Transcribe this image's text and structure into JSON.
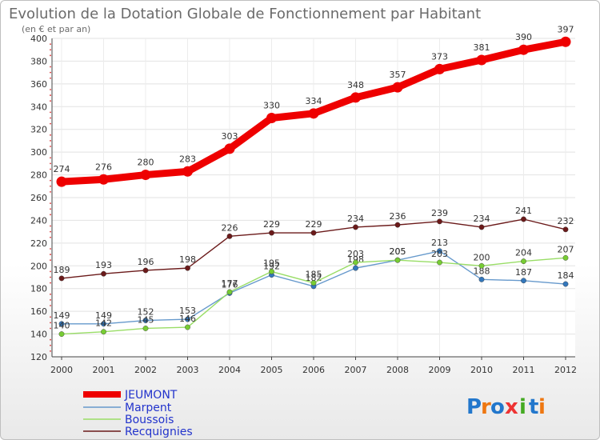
{
  "chart_data": {
    "type": "line",
    "title": "Evolution de la Dotation Globale de Fonctionnement par Habitant",
    "subtitle": "(en € et par an)",
    "categories": [
      "2000",
      "2001",
      "2002",
      "2003",
      "2004",
      "2005",
      "2006",
      "2007",
      "2008",
      "2009",
      "2010",
      "2011",
      "2012"
    ],
    "ylim": [
      120,
      400
    ],
    "yticks": [
      120,
      140,
      160,
      180,
      200,
      220,
      240,
      260,
      280,
      300,
      320,
      340,
      360,
      380,
      400
    ],
    "grid": true,
    "series": [
      {
        "name": "JEUMONT",
        "color": "#ee0000",
        "values": [
          274,
          276,
          280,
          283,
          303,
          330,
          334,
          348,
          357,
          373,
          381,
          390,
          397
        ]
      },
      {
        "name": "Marpent",
        "color": "#6699cc",
        "marker": "#3377bb",
        "values": [
          149,
          149,
          152,
          153,
          176,
          192,
          182,
          198,
          205,
          213,
          188,
          187,
          184
        ]
      },
      {
        "name": "Boussois",
        "color": "#99dd66",
        "marker": "#77cc33",
        "values": [
          140,
          142,
          145,
          146,
          177,
          195,
          185,
          203,
          205,
          203,
          200,
          204,
          207
        ]
      },
      {
        "name": "Recquignies",
        "color": "#6b1a1a",
        "marker": "#6b1a1a",
        "values": [
          189,
          193,
          196,
          198,
          226,
          229,
          229,
          234,
          236,
          239,
          234,
          241,
          232
        ]
      }
    ]
  },
  "logo": {
    "letters": [
      "P",
      "r",
      "o",
      "x",
      "i",
      "t",
      "i"
    ]
  }
}
